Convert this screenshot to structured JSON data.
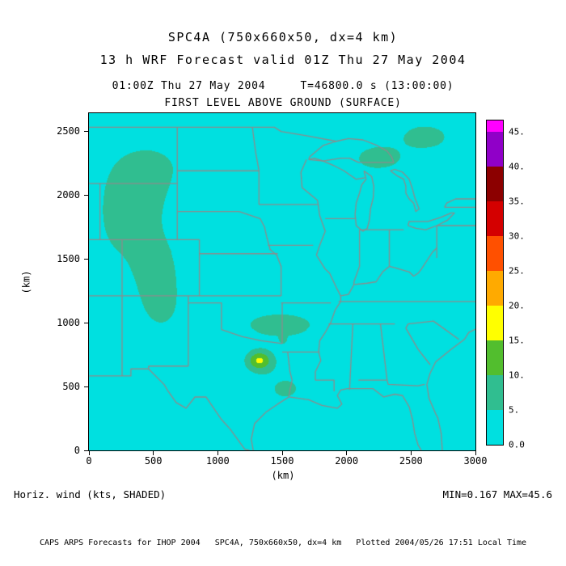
{
  "header": {
    "title": "SPC4A (750x660x50, dx=4 km)",
    "subtitle": "13 h WRF Forecast valid 01Z Thu 27 May 2004",
    "time_line": "01:00Z Thu 27 May 2004     T=46800.0 s (13:00:00)",
    "level_line": "FIRST LEVEL ABOVE GROUND (SURFACE)"
  },
  "footer": {
    "field_label": "Horiz. wind (kts, SHADED)",
    "minmax": "MIN=0.167 MAX=45.6",
    "credit": "CAPS ARPS Forecasts for IHOP 2004   SPC4A, 750x660x50, dx=4 km   Plotted 2004/05/26 17:51 Local Time"
  },
  "chart_data": {
    "type": "heatmap",
    "title": "SPC4A (750x660x50, dx=4 km)",
    "subtitle": "13 h WRF Forecast valid 01Z Thu 27 May 2004",
    "field": "Horiz. wind (kts, SHADED)",
    "level": "FIRST LEVEL ABOVE GROUND (SURFACE)",
    "units": "kts",
    "min": 0.167,
    "max": 45.6,
    "xlabel": "(km)",
    "ylabel": "(km)",
    "x_range": [
      0,
      3000
    ],
    "y_range": [
      0,
      2640
    ],
    "x_ticks": [
      "0",
      "500",
      "1000",
      "1500",
      "2000",
      "2500",
      "3000"
    ],
    "y_ticks": [
      "0",
      "500",
      "1000",
      "1500",
      "2000",
      "2500"
    ],
    "grid": false,
    "legend_position": "right-colorbar",
    "colorbar": {
      "levels": [
        0,
        5,
        10,
        15,
        20,
        25,
        30,
        35,
        40,
        45
      ],
      "labels": [
        "0.0",
        "5.",
        "10.",
        "15.",
        "20.",
        "25.",
        "30.",
        "35.",
        "40.",
        "45."
      ],
      "palette": [
        "#00E0E0",
        "#30BE90",
        "#52BE2E",
        "#FFFF00",
        "#FFAA00",
        "#FF5000",
        "#D40000",
        "#8C0000",
        "#9000C8",
        "#FF00FF"
      ],
      "over_color": "#FF00FF"
    },
    "map": {
      "region": "Continental United States with state borders and Great Lakes",
      "boundary_color": "#8C8C8C"
    }
  }
}
